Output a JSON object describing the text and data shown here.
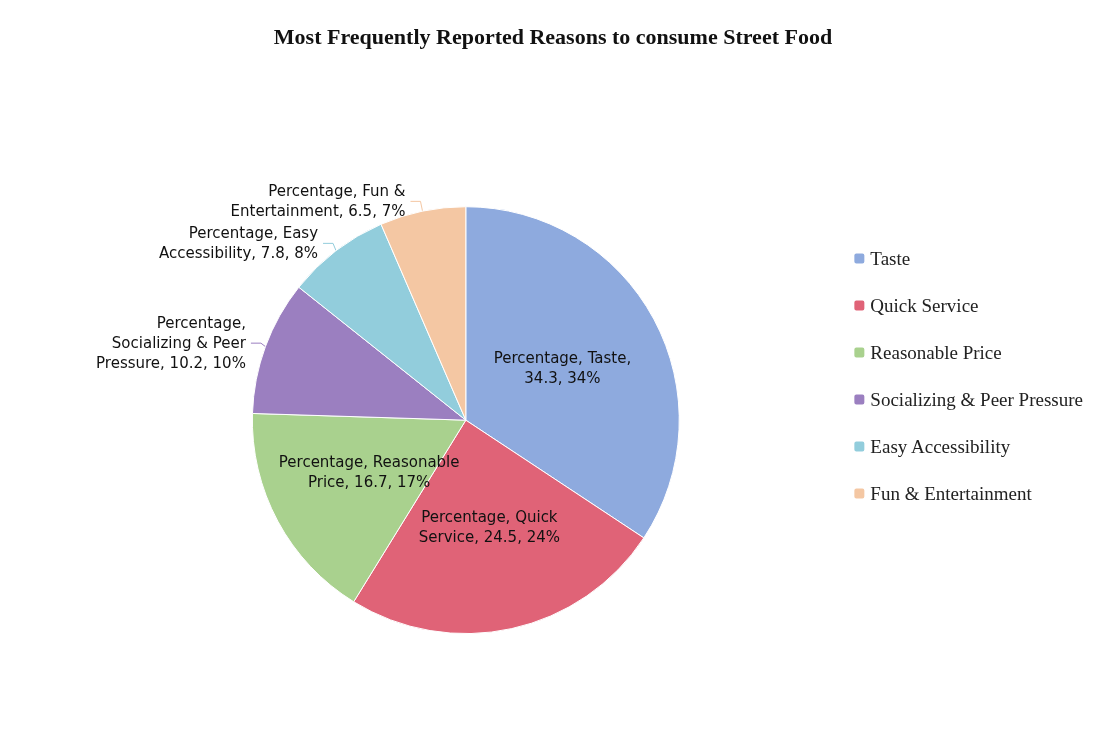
{
  "chart_data": {
    "type": "pie",
    "title": "Most Frequently Reported Reasons to consume Street Food",
    "categories": [
      "Taste",
      "Quick Service",
      "Reasonable Price",
      "Socializing & Peer Pressure",
      "Easy Accessibility",
      "Fun & Entertainment"
    ],
    "values": [
      34.3,
      24.5,
      16.7,
      10.2,
      7.8,
      6.5
    ],
    "colors": [
      "#8eaade",
      "#e06377",
      "#a9d18e",
      "#9b7fc0",
      "#92cddc",
      "#f4c7a3"
    ],
    "value_labels": [
      "Percentage, Taste, 34.3, 34%",
      "Percentage, Quick Service, 24.5, 24%",
      "Percentage, Reasonable Price, 16.7, 17%",
      "Percentage, Socializing & Peer Pressure, 10.2, 10%",
      "Percentage, Easy Accessibility, 7.8, 8%",
      "Percentage, Fun & Entertainment, 6.5, 7%"
    ],
    "legend": "right"
  }
}
